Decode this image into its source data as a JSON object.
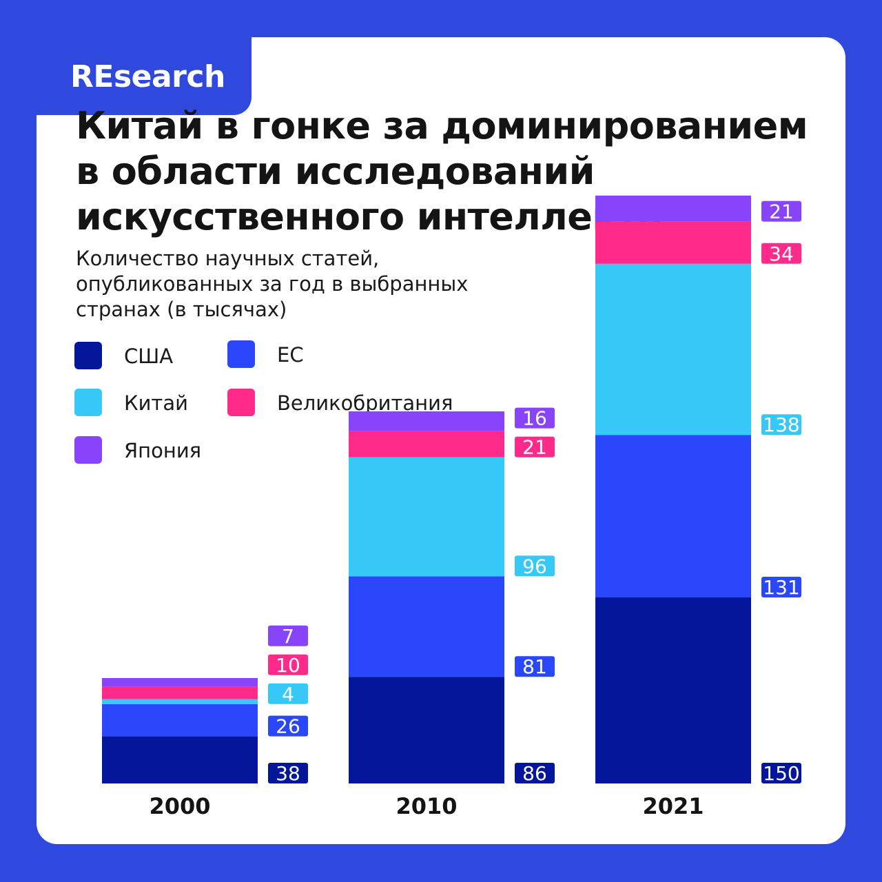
{
  "brand": "REsearch",
  "title_lines": [
    "Китай в гонке за доминированием",
    "в области исследований",
    "искусственного интеллекта"
  ],
  "subtitle_lines": [
    "Количество научных статей,",
    "опубликованных за год в выбранных",
    "странах (в тысячах)"
  ],
  "colors": {
    "background": "#2f48de",
    "card": "#ffffff"
  },
  "chart_data": {
    "type": "bar",
    "stacked": true,
    "categories": [
      "2000",
      "2010",
      "2021"
    ],
    "series": [
      {
        "name": "США",
        "color": "#04179a",
        "values": [
          38,
          86,
          150
        ]
      },
      {
        "name": "ЕС",
        "color": "#2b47fb",
        "values": [
          26,
          81,
          131
        ]
      },
      {
        "name": "Китай",
        "color": "#36c9f8",
        "values": [
          4,
          96,
          138
        ]
      },
      {
        "name": "Великобритания",
        "color": "#ff2a8a",
        "values": [
          10,
          21,
          34
        ]
      },
      {
        "name": "Япония",
        "color": "#8844fb",
        "values": [
          7,
          16,
          21
        ]
      }
    ],
    "legend_position": "top-left",
    "grid": false
  }
}
